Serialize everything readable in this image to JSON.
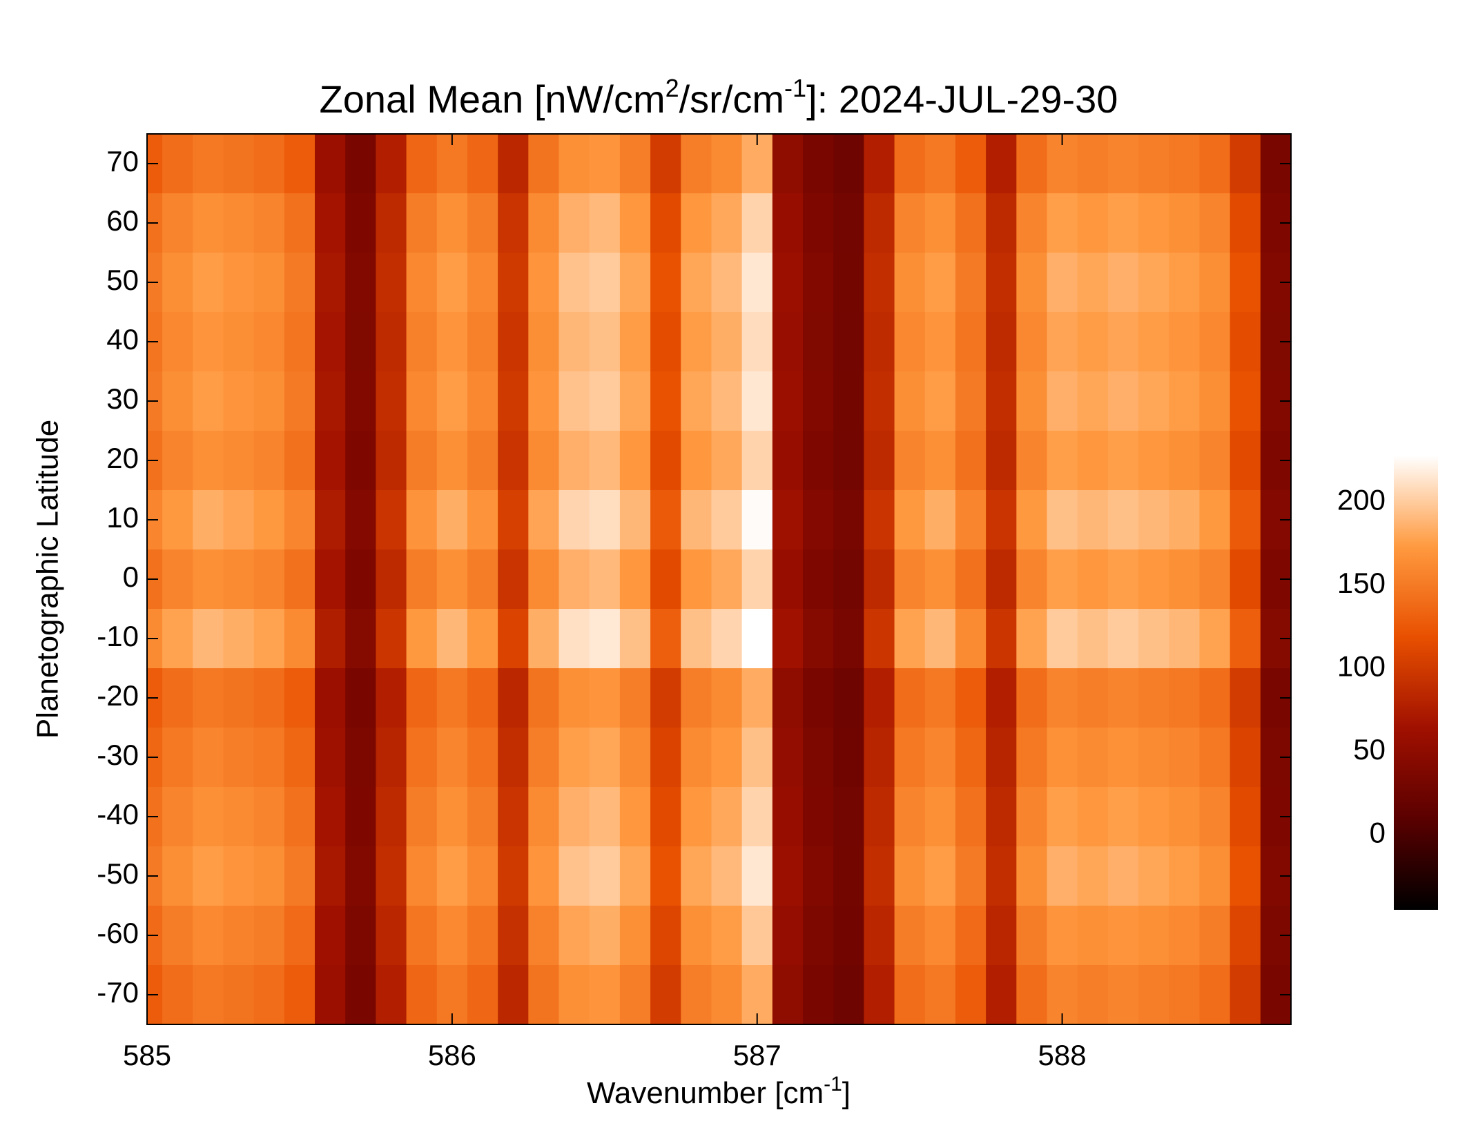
{
  "chart_data": {
    "type": "heatmap",
    "title": [
      "Zonal Mean [nW/cm",
      "2",
      "/sr/cm",
      "-1",
      "]: 2024-JUL-29-30"
    ],
    "xlabel": [
      "Wavenumber [cm",
      "-1",
      "]"
    ],
    "ylabel": "Planetographic Latitude",
    "xlim": [
      585,
      588.75
    ],
    "xticks": [
      585,
      586,
      587,
      588
    ],
    "ylim": [
      -75,
      75
    ],
    "yticks": [
      70,
      60,
      50,
      40,
      30,
      20,
      10,
      0,
      -10,
      -20,
      -30,
      -40,
      -50,
      -60,
      -70
    ],
    "zlim": [
      -45,
      228
    ],
    "zticks": [
      0,
      50,
      100,
      150,
      200
    ],
    "colormap": [
      "#000000",
      "#5a0000",
      "#a01000",
      "#e85000",
      "#ff9a40",
      "#ffffff"
    ],
    "x": [
      585.0,
      585.1,
      585.2,
      585.3,
      585.4,
      585.5,
      585.6,
      585.7,
      585.8,
      585.9,
      586.0,
      586.1,
      586.2,
      586.3,
      586.4,
      586.5,
      586.6,
      586.7,
      586.8,
      586.9,
      587.0,
      587.1,
      587.2,
      587.3,
      587.4,
      587.5,
      587.6,
      587.7,
      587.8,
      587.9,
      588.0,
      588.1,
      588.2,
      588.3,
      588.4,
      588.5,
      588.6,
      588.7
    ],
    "y": [
      70,
      60,
      50,
      40,
      30,
      20,
      10,
      0,
      -10,
      -20,
      -30,
      -40,
      -50,
      -60,
      -70
    ],
    "values": [
      [
        128,
        140,
        149,
        145,
        140,
        128,
        60,
        34,
        77,
        136,
        149,
        136,
        85,
        145,
        166,
        170,
        153,
        102,
        153,
        162,
        183,
        51,
        34,
        26,
        77,
        140,
        149,
        128,
        77,
        140,
        157,
        153,
        157,
        153,
        149,
        140,
        102,
        34
      ],
      [
        143,
        157,
        166,
        162,
        157,
        143,
        67,
        38,
        86,
        152,
        166,
        152,
        95,
        162,
        185,
        190,
        171,
        114,
        171,
        181,
        204,
        57,
        38,
        29,
        86,
        157,
        166,
        143,
        86,
        157,
        176,
        171,
        176,
        171,
        166,
        157,
        114,
        38
      ],
      [
        150,
        165,
        175,
        170,
        165,
        150,
        70,
        40,
        90,
        160,
        175,
        160,
        100,
        170,
        195,
        200,
        180,
        120,
        180,
        190,
        215,
        60,
        40,
        30,
        90,
        165,
        175,
        150,
        90,
        165,
        185,
        180,
        185,
        180,
        175,
        165,
        120,
        40
      ],
      [
        146,
        160,
        170,
        165,
        160,
        146,
        68,
        39,
        87,
        155,
        170,
        155,
        97,
        165,
        189,
        194,
        175,
        116,
        175,
        184,
        209,
        58,
        39,
        29,
        87,
        160,
        170,
        146,
        87,
        160,
        179,
        175,
        179,
        175,
        170,
        160,
        116,
        39
      ],
      [
        150,
        165,
        175,
        170,
        165,
        150,
        70,
        40,
        90,
        160,
        175,
        160,
        100,
        170,
        195,
        200,
        180,
        120,
        180,
        190,
        215,
        60,
        40,
        30,
        90,
        165,
        175,
        150,
        90,
        165,
        185,
        180,
        185,
        180,
        175,
        165,
        120,
        40
      ],
      [
        143,
        157,
        166,
        162,
        157,
        143,
        67,
        38,
        86,
        152,
        166,
        152,
        95,
        162,
        185,
        190,
        171,
        114,
        171,
        181,
        204,
        57,
        38,
        29,
        86,
        157,
        166,
        143,
        86,
        157,
        176,
        171,
        176,
        171,
        166,
        157,
        114,
        38
      ],
      [
        158,
        173,
        184,
        179,
        173,
        158,
        74,
        42,
        95,
        168,
        184,
        168,
        105,
        179,
        205,
        210,
        189,
        126,
        189,
        200,
        226,
        63,
        42,
        32,
        95,
        173,
        184,
        158,
        95,
        173,
        194,
        189,
        194,
        189,
        184,
        173,
        126,
        42
      ],
      [
        143,
        157,
        166,
        162,
        157,
        143,
        67,
        38,
        86,
        152,
        166,
        152,
        95,
        162,
        185,
        190,
        171,
        114,
        171,
        181,
        204,
        57,
        38,
        29,
        86,
        157,
        166,
        143,
        86,
        157,
        176,
        171,
        176,
        171,
        166,
        157,
        114,
        38
      ],
      [
        162,
        178,
        189,
        184,
        178,
        162,
        76,
        43,
        97,
        173,
        189,
        173,
        108,
        184,
        211,
        216,
        194,
        130,
        194,
        205,
        232,
        65,
        43,
        32,
        97,
        178,
        189,
        162,
        97,
        178,
        200,
        194,
        200,
        194,
        189,
        178,
        130,
        43
      ],
      [
        128,
        140,
        149,
        145,
        140,
        128,
        60,
        34,
        77,
        136,
        149,
        136,
        85,
        145,
        166,
        170,
        153,
        102,
        153,
        162,
        183,
        51,
        34,
        26,
        77,
        140,
        149,
        128,
        77,
        140,
        157,
        153,
        157,
        153,
        149,
        140,
        102,
        34
      ],
      [
        135,
        149,
        158,
        153,
        149,
        135,
        63,
        36,
        81,
        144,
        158,
        144,
        90,
        153,
        176,
        180,
        162,
        108,
        162,
        171,
        194,
        54,
        36,
        27,
        81,
        149,
        158,
        135,
        81,
        149,
        167,
        162,
        167,
        162,
        158,
        149,
        108,
        36
      ],
      [
        143,
        157,
        166,
        162,
        157,
        143,
        67,
        38,
        86,
        152,
        166,
        152,
        95,
        162,
        185,
        190,
        171,
        114,
        171,
        181,
        204,
        57,
        38,
        29,
        86,
        157,
        166,
        143,
        86,
        157,
        176,
        171,
        176,
        171,
        166,
        157,
        114,
        38
      ],
      [
        150,
        165,
        175,
        170,
        165,
        150,
        70,
        40,
        90,
        160,
        175,
        160,
        100,
        170,
        195,
        200,
        180,
        120,
        180,
        190,
        215,
        60,
        40,
        30,
        90,
        165,
        175,
        150,
        90,
        165,
        185,
        180,
        185,
        180,
        175,
        165,
        120,
        40
      ],
      [
        138,
        152,
        161,
        156,
        152,
        138,
        64,
        37,
        83,
        147,
        161,
        147,
        92,
        156,
        179,
        184,
        166,
        110,
        166,
        175,
        198,
        55,
        37,
        28,
        83,
        152,
        161,
        138,
        83,
        152,
        170,
        166,
        170,
        166,
        161,
        152,
        110,
        37
      ],
      [
        128,
        140,
        149,
        145,
        140,
        128,
        60,
        34,
        77,
        136,
        149,
        136,
        85,
        145,
        166,
        170,
        153,
        102,
        153,
        162,
        183,
        51,
        34,
        26,
        77,
        140,
        149,
        128,
        77,
        140,
        157,
        153,
        157,
        153,
        149,
        140,
        102,
        34
      ]
    ]
  }
}
